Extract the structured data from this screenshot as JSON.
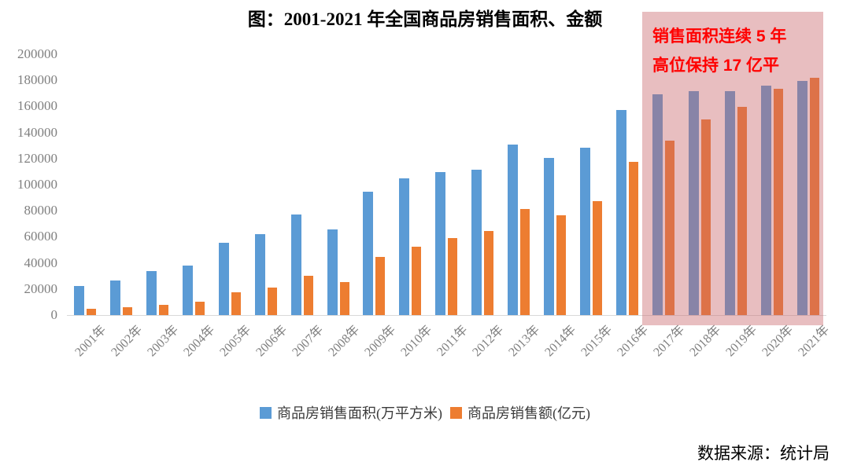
{
  "title": "图：2001-2021 年全国商品房销售面积、金额",
  "source": "数据来源：统计局",
  "annotation": {
    "lines": [
      "销售面积连续 5 年",
      "高位保持 17 亿平"
    ]
  },
  "colors": {
    "series_area": "#5B9BD5",
    "series_amount": "#ED7D31",
    "highlight_fill": "rgba(201,99,104,0.42)",
    "annotation_text": "#FF0000",
    "axis_line": "#D9D9D9",
    "tick_label": "#7F7F7F"
  },
  "chart_data": {
    "type": "bar",
    "title": "图：2001-2021 年全国商品房销售面积、金额",
    "xlabel": "",
    "ylabel": "",
    "categories": [
      "2001年",
      "2002年",
      "2003年",
      "2004年",
      "2005年",
      "2006年",
      "2007年",
      "2008年",
      "2009年",
      "2010年",
      "2011年",
      "2012年",
      "2013年",
      "2014年",
      "2015年",
      "2016年",
      "2017年",
      "2018年",
      "2019年",
      "2020年",
      "2021年"
    ],
    "series": [
      {
        "name": "商品房销售面积(万平方米)",
        "color": "#5B9BD5",
        "values": [
          22412,
          26808,
          33718,
          38232,
          55486,
          61857,
          77355,
          65970,
          94755,
          104765,
          109946,
          111304,
          130551,
          120649,
          128495,
          157349,
          169408,
          171654,
          171558,
          176086,
          179433
        ]
      },
      {
        "name": "商品房销售额(亿元)",
        "color": "#ED7D31",
        "values": [
          4863,
          6032,
          7956,
          10376,
          17576,
          20826,
          29889,
          25068,
          44355,
          52721,
          59119,
          64456,
          81428,
          76292,
          87281,
          117627,
          133701,
          149973,
          159725,
          173613,
          181930
        ]
      }
    ],
    "ylim": [
      0,
      200000
    ],
    "ytick_step": 20000,
    "grid": false,
    "legend_position": "bottom",
    "highlight": {
      "from_category": "2017年",
      "to_category": "2021年",
      "label": "销售面积连续 5 年高位保持 17 亿平"
    }
  }
}
